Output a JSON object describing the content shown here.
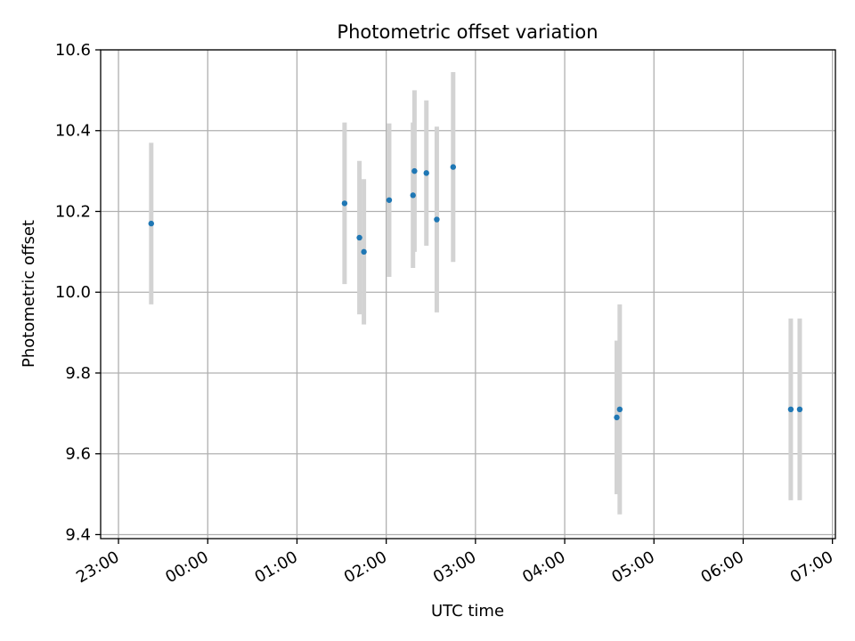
{
  "chart_data": {
    "type": "scatter",
    "title": "Photometric offset variation",
    "xlabel": "UTC time",
    "ylabel": "Photometric offset",
    "x_axis": {
      "kind": "time",
      "range": [
        "22:48",
        "07:02"
      ],
      "ticks": [
        "23:00",
        "00:00",
        "01:00",
        "02:00",
        "03:00",
        "04:00",
        "05:00",
        "06:00",
        "07:00"
      ],
      "tick_label_rotation": "30 degrees"
    },
    "y_axis": {
      "range": [
        9.39,
        10.6
      ],
      "ticks": [
        "9.4",
        "9.6",
        "9.8",
        "10.0",
        "10.2",
        "10.4",
        "10.6"
      ]
    },
    "grid": true,
    "legend": "none",
    "colors": {
      "points": "#1f77b4",
      "error_bars": "#d3d3d3",
      "grid": "#b0b0b0"
    },
    "series": [
      {
        "points": [
          {
            "x": "23:22",
            "y": 10.17,
            "err": 0.2
          },
          {
            "x": "01:32",
            "y": 10.22,
            "err": 0.2
          },
          {
            "x": "01:42",
            "y": 10.135,
            "err": 0.19
          },
          {
            "x": "01:45",
            "y": 10.1,
            "err": 0.18
          },
          {
            "x": "02:02",
            "y": 10.228,
            "err": 0.19
          },
          {
            "x": "02:18",
            "y": 10.24,
            "err": 0.18
          },
          {
            "x": "02:19",
            "y": 10.3,
            "err": 0.2
          },
          {
            "x": "02:27",
            "y": 10.295,
            "err": 0.18
          },
          {
            "x": "02:34",
            "y": 10.18,
            "err": 0.23
          },
          {
            "x": "02:45",
            "y": 10.31,
            "err": 0.235
          },
          {
            "x": "04:35",
            "y": 9.69,
            "err": 0.19
          },
          {
            "x": "04:37",
            "y": 9.71,
            "err": 0.26
          },
          {
            "x": "06:32",
            "y": 9.71,
            "err": 0.225
          },
          {
            "x": "06:38",
            "y": 9.71,
            "err": 0.225
          }
        ]
      }
    ]
  }
}
